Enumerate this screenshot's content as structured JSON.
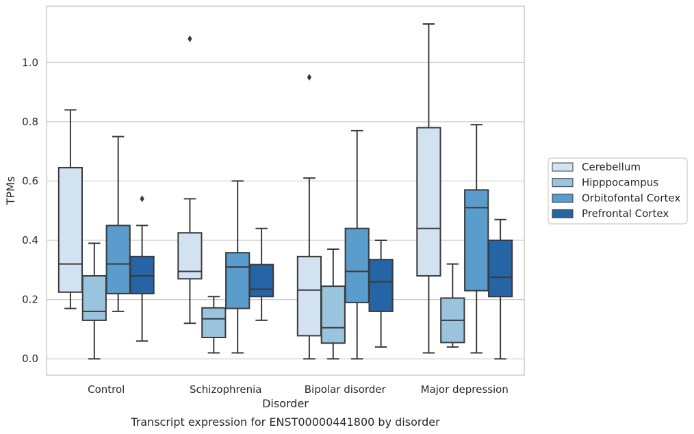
{
  "chart_data": {
    "type": "box",
    "xlabel": "Disorder",
    "ylabel": "TPMs",
    "caption": "Transcript expression for ENST00000441800 by disorder",
    "ylim": [
      -0.055,
      1.19
    ],
    "yticks": [
      "0.0",
      "0.2",
      "0.4",
      "0.6",
      "0.8",
      "1.0"
    ],
    "grid": true,
    "legend_position": "right",
    "categories": [
      "Control",
      "Schizophrenia",
      "Bipolar disorder",
      "Major depression"
    ],
    "series": [
      {
        "name": "Cerebellum",
        "color": "#d3e2f0",
        "boxes": [
          {
            "whislo": 0.17,
            "q1": 0.225,
            "med": 0.32,
            "q3": 0.645,
            "whishi": 0.84,
            "fliers": []
          },
          {
            "whislo": 0.12,
            "q1": 0.27,
            "med": 0.295,
            "q3": 0.425,
            "whishi": 0.54,
            "fliers": [
              1.08
            ]
          },
          {
            "whislo": 0.0,
            "q1": 0.078,
            "med": 0.232,
            "q3": 0.345,
            "whishi": 0.61,
            "fliers": [
              0.95
            ]
          },
          {
            "whislo": 0.02,
            "q1": 0.28,
            "med": 0.44,
            "q3": 0.78,
            "whishi": 1.13,
            "fliers": []
          }
        ]
      },
      {
        "name": "Hipppocampus",
        "color": "#9ac3dd",
        "boxes": [
          {
            "whislo": 0.0,
            "q1": 0.13,
            "med": 0.16,
            "q3": 0.28,
            "whishi": 0.39,
            "fliers": []
          },
          {
            "whislo": 0.02,
            "q1": 0.072,
            "med": 0.135,
            "q3": 0.172,
            "whishi": 0.21,
            "fliers": []
          },
          {
            "whislo": 0.0,
            "q1": 0.053,
            "med": 0.105,
            "q3": 0.245,
            "whishi": 0.37,
            "fliers": []
          },
          {
            "whislo": 0.04,
            "q1": 0.055,
            "med": 0.13,
            "q3": 0.205,
            "whishi": 0.32,
            "fliers": []
          }
        ]
      },
      {
        "name": "Orbitofontal Cortex",
        "color": "#5a9ccb",
        "boxes": [
          {
            "whislo": 0.16,
            "q1": 0.22,
            "med": 0.32,
            "q3": 0.45,
            "whishi": 0.75,
            "fliers": []
          },
          {
            "whislo": 0.02,
            "q1": 0.17,
            "med": 0.31,
            "q3": 0.358,
            "whishi": 0.6,
            "fliers": []
          },
          {
            "whislo": 0.0,
            "q1": 0.19,
            "med": 0.295,
            "q3": 0.44,
            "whishi": 0.77,
            "fliers": []
          },
          {
            "whislo": 0.02,
            "q1": 0.23,
            "med": 0.51,
            "q3": 0.57,
            "whishi": 0.79,
            "fliers": []
          }
        ]
      },
      {
        "name": "Prefrontal Cortex",
        "color": "#2565a6",
        "boxes": [
          {
            "whislo": 0.06,
            "q1": 0.22,
            "med": 0.28,
            "q3": 0.345,
            "whishi": 0.45,
            "fliers": [
              0.54
            ]
          },
          {
            "whislo": 0.13,
            "q1": 0.21,
            "med": 0.235,
            "q3": 0.318,
            "whishi": 0.44,
            "fliers": []
          },
          {
            "whislo": 0.04,
            "q1": 0.16,
            "med": 0.26,
            "q3": 0.335,
            "whishi": 0.4,
            "fliers": []
          },
          {
            "whislo": 0.0,
            "q1": 0.21,
            "med": 0.275,
            "q3": 0.4,
            "whishi": 0.47,
            "fliers": []
          }
        ]
      }
    ]
  }
}
